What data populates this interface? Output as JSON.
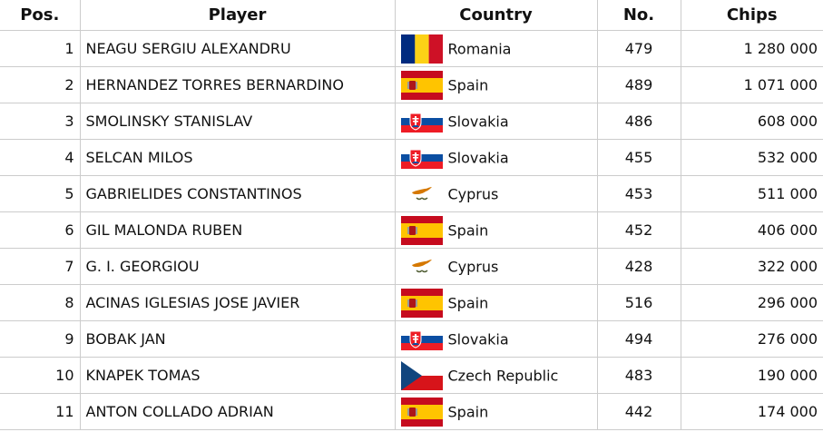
{
  "table": {
    "headers": [
      "Pos.",
      "Player",
      "Country",
      "No.",
      "Chips"
    ],
    "rows": [
      [
        "1",
        "NEAGU SERGIU ALEXANDRU",
        "Romania",
        "479",
        "1 280 000"
      ],
      [
        "2",
        "HERNANDEZ TORRES BERNARDINO",
        "Spain",
        "489",
        "1 071 000"
      ],
      [
        "3",
        "SMOLINSKY STANISLAV",
        "Slovakia",
        "486",
        "608 000"
      ],
      [
        "4",
        "SELCAN MILOS",
        "Slovakia",
        "455",
        "532 000"
      ],
      [
        "5",
        "GABRIELIDES CONSTANTINOS",
        "Cyprus",
        "453",
        "511 000"
      ],
      [
        "6",
        "GIL MALONDA RUBEN",
        "Spain",
        "452",
        "406 000"
      ],
      [
        "7",
        "G. I. GEORGIOU",
        "Cyprus",
        "428",
        "322 000"
      ],
      [
        "8",
        "ACINAS IGLESIAS JOSE JAVIER",
        "Spain",
        "516",
        "296 000"
      ],
      [
        "9",
        "BOBAK JAN",
        "Slovakia",
        "494",
        "276 000"
      ],
      [
        "10",
        "KNAPEK TOMAS",
        "Czech Republic",
        "483",
        "190 000"
      ],
      [
        "11",
        "ANTON COLLADO ADRIAN",
        "Spain",
        "442",
        "174 000"
      ]
    ]
  }
}
